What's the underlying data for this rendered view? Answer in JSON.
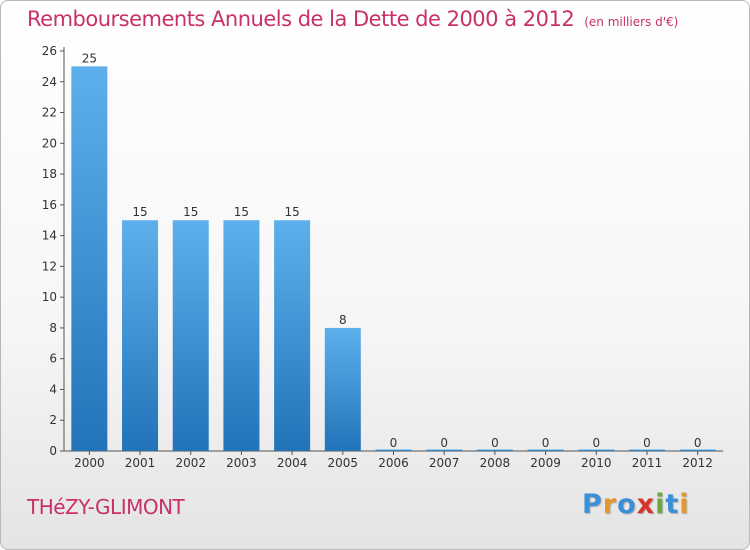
{
  "chart_data": {
    "type": "bar",
    "title": "Remboursements Annuels de la Dette de 2000 à 2012",
    "subtitle": "(en milliers d'€)",
    "categories": [
      "2000",
      "2001",
      "2002",
      "2003",
      "2004",
      "2005",
      "2006",
      "2007",
      "2008",
      "2009",
      "2010",
      "2011",
      "2012"
    ],
    "values": [
      25,
      15,
      15,
      15,
      15,
      8,
      0,
      0,
      0,
      0,
      0,
      0,
      0
    ],
    "ylim": [
      0,
      26
    ],
    "yticks": [
      0,
      2,
      4,
      6,
      8,
      10,
      12,
      14,
      16,
      18,
      20,
      22,
      24,
      26
    ],
    "xlabel": "",
    "ylabel": "",
    "grid": false,
    "bar_color": "#3f8fd8"
  },
  "footer": {
    "city": "THéZY-GLIMONT",
    "logo_letters": [
      "P",
      "r",
      "o",
      "x",
      "i",
      "t",
      "i"
    ]
  },
  "colors": {
    "title": "#c8306a",
    "logo": [
      "#3a8fd6",
      "#e8962a",
      "#3a8fd6",
      "#d8342c",
      "#6aa83a",
      "#3a8fd6",
      "#e8962a"
    ]
  }
}
